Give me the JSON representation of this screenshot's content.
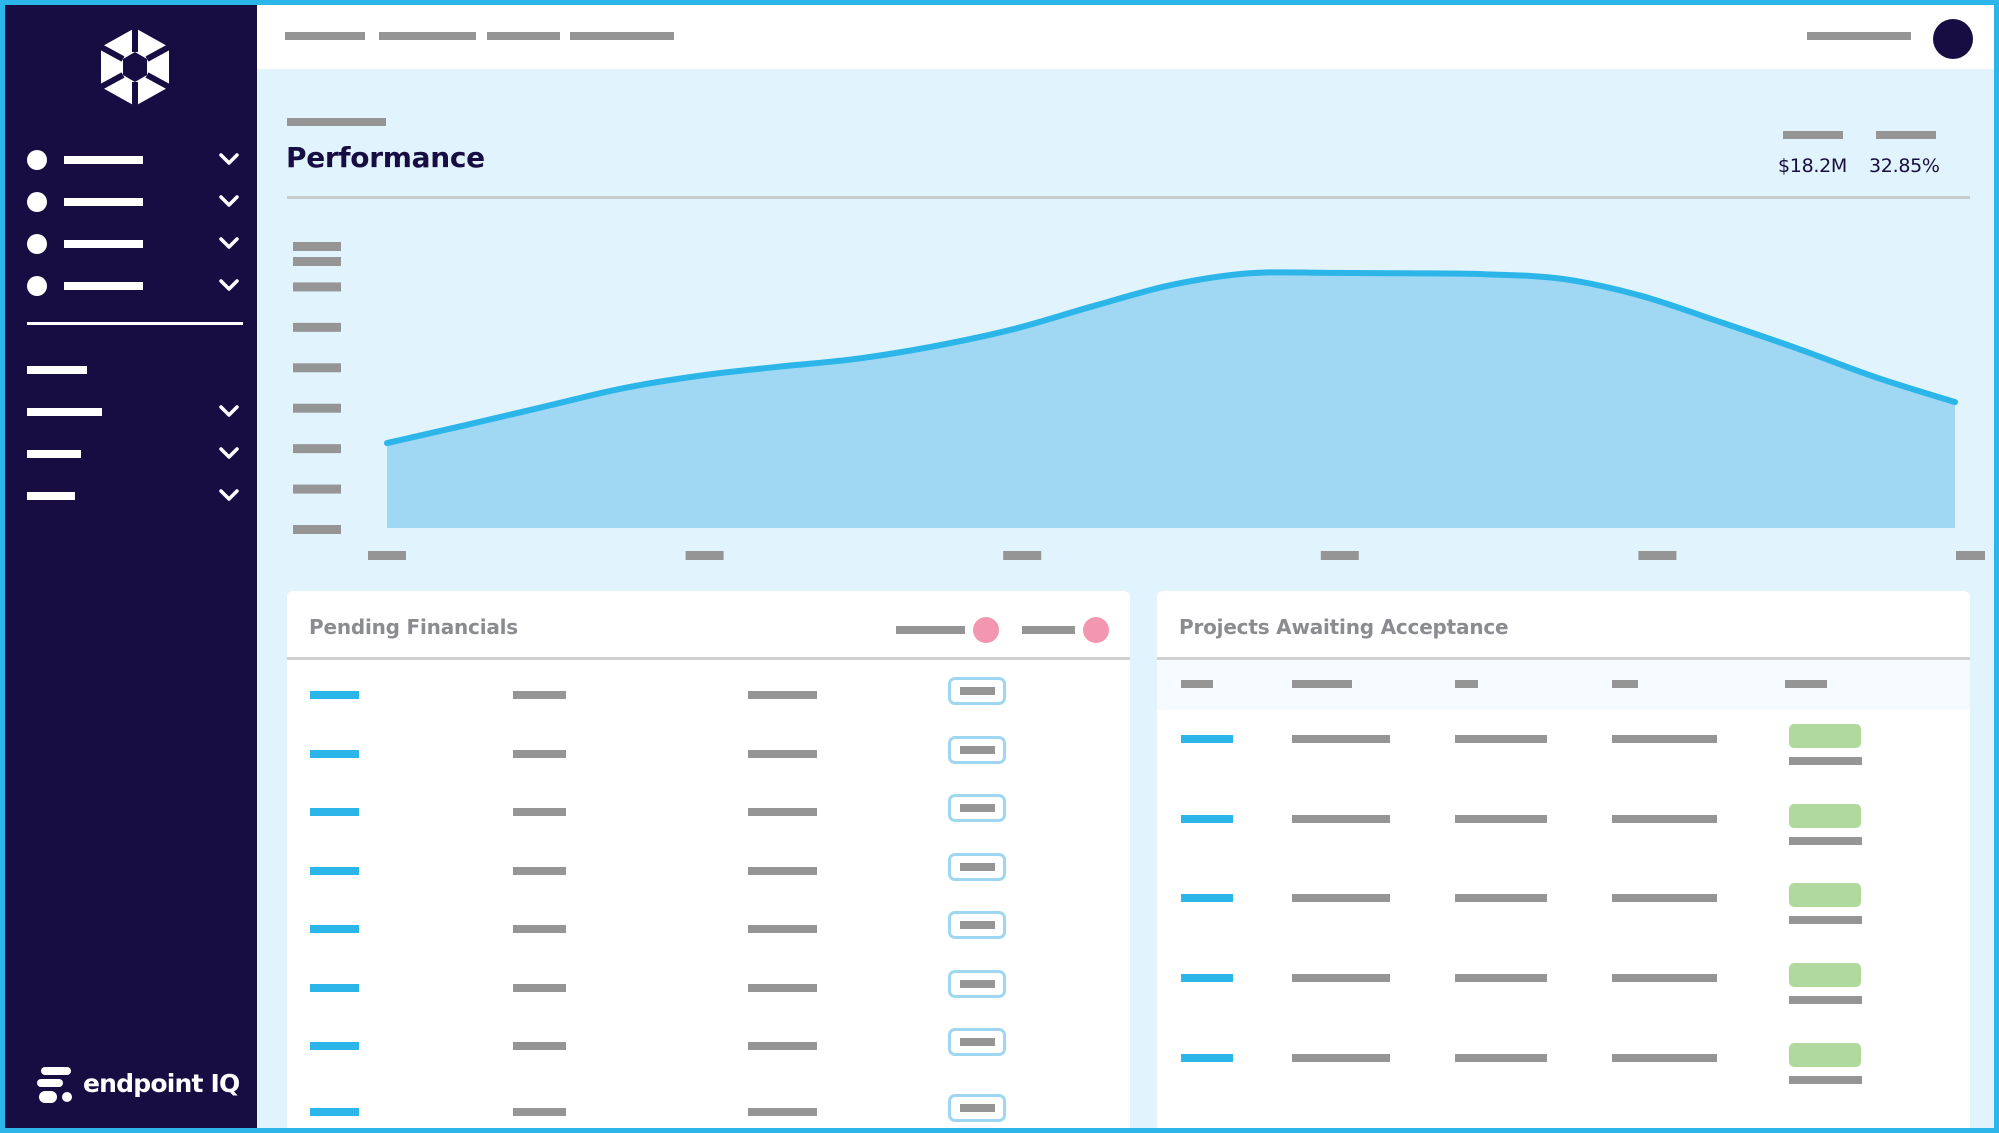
{
  "app": {
    "brand_name": "endpoint IQ",
    "brand_accent": "#2cb5e8",
    "brand_dark": "#170d42"
  },
  "sidebar": {
    "logo_icon": "hexagon-aperture-logo",
    "items": [
      {
        "icon": "dot-icon",
        "expandable": true
      },
      {
        "icon": "dot-icon",
        "expandable": true
      },
      {
        "icon": "dot-icon",
        "expandable": true
      },
      {
        "icon": "dot-icon",
        "expandable": true
      },
      {
        "icon": null,
        "expandable": false
      },
      {
        "icon": null,
        "expandable": true
      },
      {
        "icon": null,
        "expandable": true
      },
      {
        "icon": null,
        "expandable": true
      }
    ]
  },
  "header": {
    "breadcrumb_count": 4,
    "avatar_color": "#170d42"
  },
  "performance": {
    "title": "Performance",
    "stats": [
      {
        "value": "$18.2M"
      },
      {
        "value": "32.85%"
      }
    ],
    "chart_data": {
      "type": "area",
      "series_color": "#2cb5e8",
      "fill_color": "#a0d7f3",
      "x_tick_count": 6,
      "y_tick_count": 8,
      "x": [
        0,
        1,
        2,
        3,
        4,
        5,
        6,
        7,
        8,
        9,
        10,
        11,
        12,
        13,
        14,
        15,
        16,
        17,
        18,
        19,
        20
      ],
      "y": [
        18,
        21.8,
        25.7,
        29.6,
        32.3,
        34.2,
        35.9,
        38.6,
        42.2,
        47,
        51.5,
        54,
        54.1,
        54,
        53.8,
        52.8,
        49.2,
        43.7,
        38,
        31.9,
        26.7
      ],
      "ylim": [
        0,
        60
      ]
    }
  },
  "pending_financials": {
    "title": "Pending Financials",
    "legend_color": "#f397b0",
    "legend_count": 2,
    "row_count": 8
  },
  "projects_awaiting": {
    "title": "Projects Awaiting Acceptance",
    "column_count": 5,
    "row_count": 5,
    "status_color": "#b0d99d"
  }
}
